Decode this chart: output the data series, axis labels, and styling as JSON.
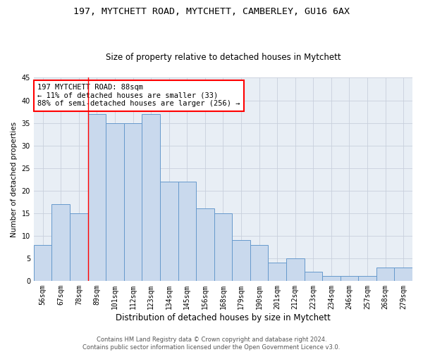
{
  "title1": "197, MYTCHETT ROAD, MYTCHETT, CAMBERLEY, GU16 6AX",
  "title2": "Size of property relative to detached houses in Mytchett",
  "xlabel": "Distribution of detached houses by size in Mytchett",
  "ylabel": "Number of detached properties",
  "categories": [
    "56sqm",
    "67sqm",
    "78sqm",
    "89sqm",
    "101sqm",
    "112sqm",
    "123sqm",
    "134sqm",
    "145sqm",
    "156sqm",
    "168sqm",
    "179sqm",
    "190sqm",
    "201sqm",
    "212sqm",
    "223sqm",
    "234sqm",
    "246sqm",
    "257sqm",
    "268sqm",
    "279sqm"
  ],
  "values": [
    8,
    17,
    15,
    37,
    35,
    35,
    37,
    22,
    22,
    16,
    15,
    9,
    8,
    4,
    5,
    2,
    1,
    1,
    1,
    3,
    3
  ],
  "bar_color": "#c9d9ed",
  "bar_edge_color": "#6699cc",
  "red_line_index": 3,
  "annotation_line1": "197 MYTCHETT ROAD: 88sqm",
  "annotation_line2": "← 11% of detached houses are smaller (33)",
  "annotation_line3": "88% of semi-detached houses are larger (256) →",
  "annotation_box_color": "white",
  "annotation_box_edge": "red",
  "ylim": [
    0,
    45
  ],
  "yticks": [
    0,
    5,
    10,
    15,
    20,
    25,
    30,
    35,
    40,
    45
  ],
  "grid_color": "#c8d0dc",
  "background_color": "#e8eef5",
  "footer1": "Contains HM Land Registry data © Crown copyright and database right 2024.",
  "footer2": "Contains public sector information licensed under the Open Government Licence v3.0.",
  "title1_fontsize": 9.5,
  "title2_fontsize": 8.5,
  "xlabel_fontsize": 8.5,
  "ylabel_fontsize": 7.5,
  "tick_fontsize": 7,
  "annotation_fontsize": 7.5,
  "footer_fontsize": 6
}
